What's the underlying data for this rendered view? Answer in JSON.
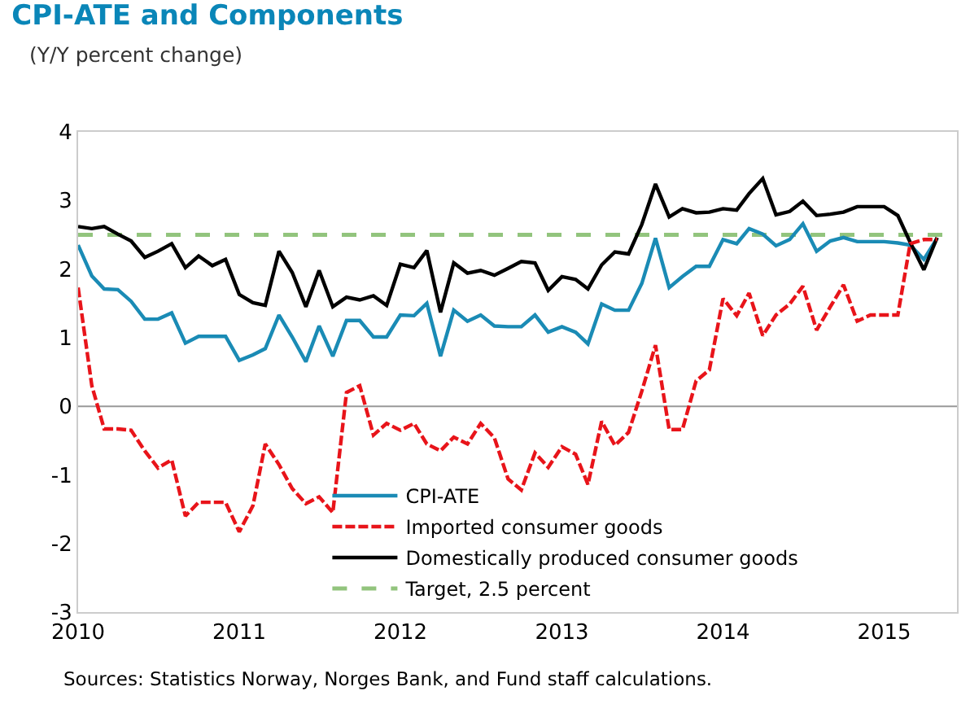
{
  "chart_data": {
    "type": "line",
    "title": "CPI-ATE and Components",
    "subtitle": "(Y/Y percent change)",
    "x": [
      "2010-01",
      "2010-02",
      "2010-03",
      "2010-04",
      "2010-05",
      "2010-06",
      "2010-07",
      "2010-08",
      "2010-09",
      "2010-10",
      "2010-11",
      "2010-12",
      "2011-01",
      "2011-02",
      "2011-03",
      "2011-04",
      "2011-05",
      "2011-06",
      "2011-07",
      "2011-08",
      "2011-09",
      "2011-10",
      "2011-11",
      "2011-12",
      "2012-01",
      "2012-02",
      "2012-03",
      "2012-04",
      "2012-05",
      "2012-06",
      "2012-07",
      "2012-08",
      "2012-09",
      "2012-10",
      "2012-11",
      "2012-12",
      "2013-01",
      "2013-02",
      "2013-03",
      "2013-04",
      "2013-05",
      "2013-06",
      "2013-07",
      "2013-08",
      "2013-09",
      "2013-10",
      "2013-11",
      "2013-12",
      "2014-01",
      "2014-02",
      "2014-03",
      "2014-04",
      "2014-05",
      "2014-06",
      "2014-07",
      "2014-08",
      "2014-09",
      "2014-10",
      "2014-11",
      "2014-12",
      "2015-01",
      "2015-02",
      "2015-03",
      "2015-04",
      "2015-05"
    ],
    "series": [
      {
        "name": "CPI-ATE",
        "color": "#1a8bb5",
        "line_style": "solid",
        "values": [
          2.35,
          1.9,
          1.71,
          1.7,
          1.53,
          1.27,
          1.27,
          1.36,
          0.92,
          1.02,
          1.02,
          1.02,
          0.67,
          0.75,
          0.84,
          1.33,
          1.01,
          0.65,
          1.17,
          0.73,
          1.25,
          1.25,
          1.01,
          1.01,
          1.33,
          1.32,
          1.5,
          0.73,
          1.4,
          1.24,
          1.33,
          1.17,
          1.16,
          1.16,
          1.33,
          1.08,
          1.16,
          1.08,
          0.91,
          1.49,
          1.4,
          1.4,
          1.79,
          2.45,
          1.73,
          1.89,
          2.04,
          2.04,
          2.43,
          2.37,
          2.59,
          2.51,
          2.34,
          2.43,
          2.66,
          2.26,
          2.41,
          2.46,
          2.4,
          2.4,
          2.4,
          2.38,
          2.35,
          2.14,
          2.45
        ]
      },
      {
        "name": "Imported consumer goods",
        "color": "#e8141a",
        "line_style": "dashed",
        "values": [
          1.73,
          0.3,
          -0.33,
          -0.33,
          -0.35,
          -0.65,
          -0.9,
          -0.78,
          -1.6,
          -1.4,
          -1.4,
          -1.4,
          -1.83,
          -1.45,
          -0.55,
          -0.85,
          -1.2,
          -1.42,
          -1.32,
          -1.55,
          0.2,
          0.3,
          -0.42,
          -0.25,
          -0.35,
          -0.25,
          -0.55,
          -0.65,
          -0.45,
          -0.55,
          -0.25,
          -0.46,
          -1.06,
          -1.22,
          -0.68,
          -0.89,
          -0.59,
          -0.7,
          -1.14,
          -0.22,
          -0.57,
          -0.38,
          0.22,
          0.89,
          -0.34,
          -0.34,
          0.37,
          0.53,
          1.57,
          1.32,
          1.65,
          1.03,
          1.33,
          1.49,
          1.75,
          1.11,
          1.45,
          1.77,
          1.24,
          1.33,
          1.33,
          1.33,
          2.37,
          2.43,
          2.43
        ]
      },
      {
        "name": "Domestically produced consumer goods",
        "color": "#000000",
        "line_style": "solid",
        "values": [
          2.62,
          2.59,
          2.62,
          2.51,
          2.41,
          2.17,
          2.26,
          2.37,
          2.02,
          2.19,
          2.05,
          2.14,
          1.63,
          1.51,
          1.47,
          2.26,
          1.95,
          1.45,
          1.98,
          1.45,
          1.59,
          1.55,
          1.61,
          1.47,
          2.07,
          2.02,
          2.27,
          1.37,
          2.09,
          1.94,
          1.98,
          1.91,
          2.01,
          2.11,
          2.09,
          1.69,
          1.89,
          1.85,
          1.71,
          2.06,
          2.25,
          2.22,
          2.65,
          3.24,
          2.76,
          2.88,
          2.82,
          2.83,
          2.88,
          2.86,
          3.1,
          3.32,
          2.79,
          2.84,
          2.99,
          2.78,
          2.8,
          2.83,
          2.91,
          2.91,
          2.91,
          2.78,
          2.39,
          1.99,
          2.46
        ]
      }
    ],
    "ref_lines": [
      {
        "axis": "y",
        "value": 0,
        "color": "#999999",
        "line_style": "solid"
      },
      {
        "axis": "y",
        "value": 2.5,
        "label": "Target, 2.5 percent",
        "color": "#92c47d",
        "line_style": "dashed"
      }
    ],
    "xlim": [
      "2010-01-01",
      "2015-06-15"
    ],
    "xticks": [
      {
        "value": "2010-01-01",
        "label": "2010"
      },
      {
        "value": "2011-01-01",
        "label": "2011"
      },
      {
        "value": "2012-01-01",
        "label": "2012"
      },
      {
        "value": "2013-01-01",
        "label": "2013"
      },
      {
        "value": "2014-01-01",
        "label": "2014"
      },
      {
        "value": "2015-01-01",
        "label": "2015"
      }
    ],
    "ylim": [
      -3,
      4
    ],
    "yticks": [
      -3,
      -2,
      -1,
      0,
      1,
      2,
      3,
      4
    ],
    "legend": "bottom",
    "marker": "none",
    "annotations": [
      "Sources: Statistics Norway, Norges Bank, and Fund staff calculations."
    ]
  }
}
